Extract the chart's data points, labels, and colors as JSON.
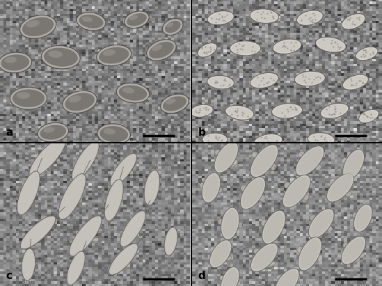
{
  "figure_width": 5.49,
  "figure_height": 4.11,
  "dpi": 100,
  "background_color": "#ffffff",
  "panel_labels": [
    "a",
    "b",
    "c",
    "d"
  ],
  "label_fontsize": 11,
  "label_color": "#000000",
  "label_weight": "bold",
  "divider_color": "#000000",
  "divider_linewidth": 1.5,
  "scale_bar_color": "#000000",
  "scale_bar_linewidth": 2.5,
  "panel_bg_top_left": "#d8d4ce",
  "panel_bg_top_right": "#cccbc8",
  "panel_bg_bot_left": "#d0ceca",
  "panel_bg_bot_right": "#d2d0cc"
}
